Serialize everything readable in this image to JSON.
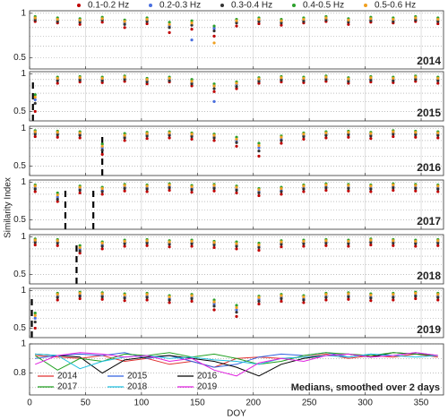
{
  "legend": {
    "names": [
      "0.1-0.2 Hz",
      "0.2-0.3 Hz",
      "0.3-0.4 Hz",
      "0.4-0.5 Hz",
      "0.5-0.6 Hz"
    ],
    "colors": [
      "#c00000",
      "#4a6fe0",
      "#333333",
      "#2ca02c",
      "#f0a020"
    ]
  },
  "y_label": "Similarity Index",
  "x_label": "DOY",
  "xlim": [
    0,
    370
  ],
  "xticks": [
    0,
    50,
    100,
    150,
    200,
    250,
    300,
    350
  ],
  "chart_data": [
    {
      "type": "scatter",
      "label": "2014",
      "log_scale": true,
      "ylim": [
        0.42,
        1.04
      ],
      "yticks": [
        0.5,
        1
      ],
      "minor_yticks": [
        0.6,
        0.7,
        0.8,
        0.9
      ],
      "gaps": [],
      "x": [
        5,
        25,
        45,
        65,
        85,
        105,
        125,
        145,
        165,
        185,
        205,
        225,
        245,
        265,
        285,
        305,
        325,
        345,
        365
      ],
      "series": [
        {
          "values": [
            0.88,
            0.86,
            0.84,
            0.87,
            0.8,
            0.85,
            0.74,
            0.78,
            0.7,
            0.82,
            0.85,
            0.83,
            0.86,
            0.88,
            0.84,
            0.87,
            0.86,
            0.88,
            0.85
          ]
        },
        {
          "values": [
            0.92,
            0.9,
            0.89,
            0.91,
            0.86,
            0.9,
            0.82,
            0.66,
            0.79,
            0.88,
            0.9,
            0.88,
            0.9,
            0.92,
            0.89,
            0.91,
            0.9,
            0.92,
            0.9
          ]
        },
        {
          "values": [
            0.9,
            0.88,
            0.87,
            0.9,
            0.84,
            0.88,
            0.8,
            0.83,
            0.76,
            0.86,
            0.88,
            0.86,
            0.88,
            0.9,
            0.87,
            0.89,
            0.88,
            0.9,
            0.88
          ]
        },
        {
          "values": [
            0.95,
            0.93,
            0.92,
            0.94,
            0.9,
            0.93,
            0.87,
            0.89,
            0.82,
            0.91,
            0.93,
            0.91,
            0.93,
            0.95,
            0.92,
            0.94,
            0.93,
            0.95,
            0.93
          ]
        },
        {
          "values": [
            0.93,
            0.91,
            0.9,
            0.92,
            0.88,
            0.91,
            0.84,
            0.86,
            0.63,
            0.89,
            0.91,
            0.89,
            0.91,
            0.93,
            0.9,
            0.92,
            0.91,
            0.93,
            0.91
          ]
        }
      ]
    },
    {
      "type": "scatter",
      "label": "2015",
      "log_scale": true,
      "ylim": [
        0.42,
        1.04
      ],
      "yticks": [
        0.5,
        1
      ],
      "minor_yticks": [
        0.6,
        0.7,
        0.8,
        0.9
      ],
      "gaps": [
        3
      ],
      "x": [
        5,
        25,
        45,
        65,
        85,
        105,
        125,
        145,
        165,
        185,
        205,
        225,
        245,
        265,
        285,
        305,
        325,
        345,
        365
      ],
      "series": [
        {
          "values": [
            0.5,
            0.84,
            0.86,
            0.85,
            0.87,
            0.83,
            0.86,
            0.8,
            0.72,
            0.76,
            0.84,
            0.86,
            0.85,
            0.87,
            0.84,
            0.86,
            0.85,
            0.87,
            0.84
          ]
        },
        {
          "values": [
            0.62,
            0.9,
            0.91,
            0.9,
            0.92,
            0.88,
            0.9,
            0.85,
            0.6,
            0.82,
            0.89,
            0.91,
            0.9,
            0.92,
            0.89,
            0.91,
            0.9,
            0.92,
            0.9
          ]
        },
        {
          "values": [
            0.58,
            0.88,
            0.89,
            0.88,
            0.9,
            0.86,
            0.88,
            0.83,
            0.76,
            0.79,
            0.87,
            0.89,
            0.88,
            0.9,
            0.87,
            0.89,
            0.88,
            0.9,
            0.88
          ]
        },
        {
          "values": [
            0.68,
            0.94,
            0.95,
            0.94,
            0.96,
            0.92,
            0.94,
            0.9,
            0.83,
            0.86,
            0.93,
            0.95,
            0.94,
            0.96,
            0.93,
            0.95,
            0.94,
            0.96,
            0.94
          ]
        },
        {
          "values": [
            0.65,
            0.92,
            0.93,
            0.92,
            0.94,
            0.9,
            0.92,
            0.87,
            0.8,
            0.84,
            0.91,
            0.93,
            0.92,
            0.94,
            0.91,
            0.93,
            0.92,
            0.94,
            0.92
          ]
        }
      ]
    },
    {
      "type": "scatter",
      "label": "2016",
      "log_scale": true,
      "ylim": [
        0.42,
        1.04
      ],
      "yticks": [
        0.5,
        1
      ],
      "minor_yticks": [
        0.6,
        0.7,
        0.8,
        0.9
      ],
      "gaps": [
        65
      ],
      "x": [
        5,
        25,
        45,
        65,
        85,
        105,
        125,
        145,
        165,
        185,
        205,
        225,
        245,
        265,
        285,
        305,
        325,
        345,
        365
      ],
      "series": [
        {
          "values": [
            0.86,
            0.85,
            0.84,
            0.62,
            0.8,
            0.83,
            0.84,
            0.82,
            0.8,
            0.72,
            0.6,
            0.76,
            0.82,
            0.84,
            0.85,
            0.83,
            0.86,
            0.85,
            0.84
          ]
        },
        {
          "values": [
            0.92,
            0.91,
            0.9,
            0.7,
            0.86,
            0.89,
            0.9,
            0.88,
            0.86,
            0.8,
            0.7,
            0.82,
            0.88,
            0.9,
            0.91,
            0.89,
            0.92,
            0.91,
            0.9
          ]
        },
        {
          "values": [
            0.9,
            0.89,
            0.88,
            0.67,
            0.84,
            0.87,
            0.88,
            0.86,
            0.84,
            0.77,
            0.66,
            0.8,
            0.86,
            0.88,
            0.89,
            0.87,
            0.9,
            0.89,
            0.88
          ]
        },
        {
          "values": [
            0.96,
            0.95,
            0.94,
            0.75,
            0.91,
            0.93,
            0.94,
            0.92,
            0.9,
            0.85,
            0.76,
            0.87,
            0.92,
            0.94,
            0.95,
            0.93,
            0.96,
            0.95,
            0.94
          ]
        },
        {
          "values": [
            0.94,
            0.93,
            0.92,
            0.72,
            0.88,
            0.91,
            0.92,
            0.9,
            0.88,
            0.82,
            0.73,
            0.85,
            0.9,
            0.92,
            0.93,
            0.91,
            0.94,
            0.93,
            0.92
          ]
        }
      ]
    },
    {
      "type": "scatter",
      "label": "2017",
      "log_scale": true,
      "ylim": [
        0.42,
        1.04
      ],
      "yticks": [
        0.5,
        1
      ],
      "minor_yticks": [
        0.6,
        0.7,
        0.8,
        0.9
      ],
      "gaps": [
        32,
        57
      ],
      "x": [
        5,
        25,
        45,
        65,
        85,
        105,
        125,
        145,
        165,
        185,
        205,
        225,
        245,
        265,
        285,
        305,
        325,
        345,
        365
      ],
      "series": [
        {
          "values": [
            0.84,
            0.7,
            0.82,
            0.8,
            0.85,
            0.84,
            0.86,
            0.83,
            0.85,
            0.82,
            0.78,
            0.8,
            0.84,
            0.86,
            0.85,
            0.84,
            0.86,
            0.85,
            0.84
          ]
        },
        {
          "values": [
            0.9,
            0.76,
            0.88,
            0.86,
            0.91,
            0.9,
            0.92,
            0.89,
            0.91,
            0.88,
            0.84,
            0.86,
            0.9,
            0.92,
            0.91,
            0.9,
            0.92,
            0.91,
            0.9
          ]
        },
        {
          "values": [
            0.88,
            0.73,
            0.86,
            0.84,
            0.89,
            0.88,
            0.9,
            0.87,
            0.89,
            0.86,
            0.82,
            0.84,
            0.88,
            0.9,
            0.89,
            0.88,
            0.9,
            0.89,
            0.88
          ]
        },
        {
          "values": [
            0.95,
            0.82,
            0.93,
            0.91,
            0.96,
            0.95,
            0.97,
            0.94,
            0.96,
            0.93,
            0.89,
            0.91,
            0.95,
            0.97,
            0.96,
            0.95,
            0.97,
            0.96,
            0.95
          ]
        },
        {
          "values": [
            0.93,
            0.79,
            0.91,
            0.89,
            0.94,
            0.93,
            0.95,
            0.92,
            0.94,
            0.91,
            0.87,
            0.89,
            0.93,
            0.95,
            0.94,
            0.93,
            0.95,
            0.94,
            0.93
          ]
        }
      ]
    },
    {
      "type": "scatter",
      "label": "2018",
      "log_scale": true,
      "ylim": [
        0.42,
        1.04
      ],
      "yticks": [
        0.5,
        1
      ],
      "minor_yticks": [
        0.6,
        0.7,
        0.8,
        0.9
      ],
      "gaps": [
        42
      ],
      "x": [
        5,
        25,
        45,
        65,
        85,
        105,
        125,
        145,
        165,
        185,
        205,
        225,
        245,
        265,
        285,
        305,
        325,
        345,
        365
      ],
      "series": [
        {
          "values": [
            0.86,
            0.85,
            0.74,
            0.8,
            0.84,
            0.85,
            0.83,
            0.84,
            0.82,
            0.8,
            0.78,
            0.83,
            0.84,
            0.85,
            0.84,
            0.86,
            0.85,
            0.84,
            0.85
          ]
        },
        {
          "values": [
            0.92,
            0.91,
            0.8,
            0.86,
            0.9,
            0.91,
            0.89,
            0.9,
            0.88,
            0.86,
            0.84,
            0.89,
            0.9,
            0.91,
            0.9,
            0.92,
            0.91,
            0.9,
            0.91
          ]
        },
        {
          "values": [
            0.9,
            0.89,
            0.77,
            0.84,
            0.88,
            0.89,
            0.87,
            0.88,
            0.86,
            0.84,
            0.82,
            0.87,
            0.88,
            0.89,
            0.88,
            0.9,
            0.89,
            0.88,
            0.89
          ]
        },
        {
          "values": [
            0.96,
            0.95,
            0.85,
            0.91,
            0.94,
            0.95,
            0.93,
            0.94,
            0.92,
            0.91,
            0.89,
            0.93,
            0.94,
            0.95,
            0.94,
            0.96,
            0.95,
            0.94,
            0.95
          ]
        },
        {
          "values": [
            0.94,
            0.93,
            0.82,
            0.89,
            0.92,
            0.93,
            0.91,
            0.92,
            0.9,
            0.88,
            0.86,
            0.91,
            0.92,
            0.93,
            0.92,
            0.94,
            0.93,
            0.92,
            0.93
          ]
        }
      ]
    },
    {
      "type": "scatter",
      "label": "2019",
      "log_scale": true,
      "ylim": [
        0.42,
        1.04
      ],
      "yticks": [
        0.5,
        1
      ],
      "minor_yticks": [
        0.6,
        0.7,
        0.8,
        0.9
      ],
      "gaps": [
        2
      ],
      "x": [
        5,
        25,
        45,
        65,
        85,
        105,
        125,
        145,
        165,
        185,
        205,
        225,
        245,
        265,
        285,
        305,
        325,
        345,
        365
      ],
      "series": [
        {
          "values": [
            0.5,
            0.84,
            0.86,
            0.85,
            0.83,
            0.84,
            0.8,
            0.82,
            0.7,
            0.62,
            0.78,
            0.82,
            0.8,
            0.84,
            0.85,
            0.83,
            0.84,
            0.86,
            0.84
          ]
        },
        {
          "values": [
            0.6,
            0.9,
            0.92,
            0.91,
            0.89,
            0.9,
            0.86,
            0.88,
            0.78,
            0.7,
            0.85,
            0.88,
            0.86,
            0.9,
            0.91,
            0.89,
            0.9,
            0.92,
            0.9
          ]
        },
        {
          "values": [
            0.56,
            0.88,
            0.9,
            0.89,
            0.87,
            0.88,
            0.84,
            0.86,
            0.75,
            0.67,
            0.82,
            0.86,
            0.84,
            0.88,
            0.89,
            0.87,
            0.88,
            0.9,
            0.88
          ]
        },
        {
          "values": [
            0.66,
            0.95,
            0.97,
            0.96,
            0.94,
            0.95,
            0.91,
            0.93,
            0.84,
            0.76,
            0.9,
            0.93,
            0.91,
            0.95,
            0.96,
            0.94,
            0.95,
            0.97,
            0.95
          ]
        },
        {
          "values": [
            0.63,
            0.93,
            0.95,
            0.94,
            0.92,
            0.93,
            0.89,
            0.91,
            0.81,
            0.73,
            0.88,
            0.91,
            0.89,
            0.93,
            0.94,
            0.92,
            0.93,
            0.95,
            0.93
          ]
        }
      ]
    },
    {
      "type": "line",
      "label": "Medians, smoothed over 2 days",
      "log_scale": false,
      "ylim": [
        0.65,
        1.0
      ],
      "yticks": [
        0.8,
        1
      ],
      "minor_yticks": [
        0.7,
        0.9
      ],
      "x": [
        5,
        25,
        45,
        65,
        85,
        105,
        125,
        145,
        165,
        185,
        205,
        225,
        245,
        265,
        285,
        305,
        325,
        345,
        365
      ],
      "series": [
        {
          "name": "2014",
          "color": "#e03030",
          "values": [
            0.92,
            0.91,
            0.9,
            0.92,
            0.88,
            0.9,
            0.86,
            0.88,
            0.84,
            0.9,
            0.91,
            0.9,
            0.91,
            0.93,
            0.9,
            0.92,
            0.91,
            0.93,
            0.91
          ]
        },
        {
          "name": "2015",
          "color": "#3060e0",
          "values": [
            0.9,
            0.92,
            0.93,
            0.92,
            0.94,
            0.9,
            0.92,
            0.88,
            0.84,
            0.86,
            0.91,
            0.93,
            0.92,
            0.94,
            0.91,
            0.93,
            0.92,
            0.94,
            0.92
          ]
        },
        {
          "name": "2016",
          "color": "#000000",
          "values": [
            0.93,
            0.92,
            0.91,
            0.8,
            0.89,
            0.91,
            0.92,
            0.9,
            0.88,
            0.84,
            0.78,
            0.86,
            0.9,
            0.92,
            0.93,
            0.91,
            0.94,
            0.93,
            0.92
          ]
        },
        {
          "name": "2017",
          "color": "#20a020",
          "values": [
            0.92,
            0.82,
            0.9,
            0.88,
            0.93,
            0.92,
            0.94,
            0.91,
            0.93,
            0.9,
            0.86,
            0.88,
            0.92,
            0.94,
            0.93,
            0.92,
            0.94,
            0.93,
            0.92
          ]
        },
        {
          "name": "2018",
          "color": "#20c0e0",
          "values": [
            0.93,
            0.92,
            0.83,
            0.88,
            0.91,
            0.92,
            0.9,
            0.91,
            0.89,
            0.88,
            0.86,
            0.9,
            0.91,
            0.92,
            0.91,
            0.93,
            0.92,
            0.91,
            0.92
          ]
        },
        {
          "name": "2019",
          "color": "#e020e0",
          "values": [
            0.86,
            0.92,
            0.94,
            0.93,
            0.91,
            0.92,
            0.88,
            0.9,
            0.82,
            0.78,
            0.87,
            0.9,
            0.88,
            0.92,
            0.93,
            0.91,
            0.92,
            0.94,
            0.92
          ]
        }
      ]
    }
  ]
}
